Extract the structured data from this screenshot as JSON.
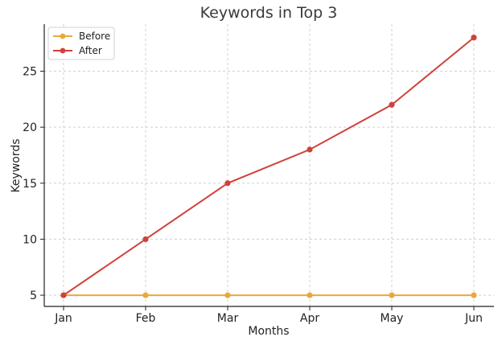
{
  "chart_data": {
    "type": "line",
    "title": "Keywords in Top 3",
    "xlabel": "Months",
    "ylabel": "Keywords",
    "categories": [
      "Jan",
      "Feb",
      "Mar",
      "Apr",
      "May",
      "Jun"
    ],
    "series": [
      {
        "name": "Before",
        "color": "#E8A93A",
        "values": [
          5,
          5,
          5,
          5,
          5,
          5
        ]
      },
      {
        "name": "After",
        "color": "#D0413A",
        "values": [
          5,
          10,
          15,
          18,
          22,
          28
        ]
      }
    ],
    "ylim": [
      4,
      29.2
    ],
    "yticks": [
      5,
      10,
      15,
      20,
      25
    ],
    "grid": true,
    "legend_position": "top-left"
  }
}
